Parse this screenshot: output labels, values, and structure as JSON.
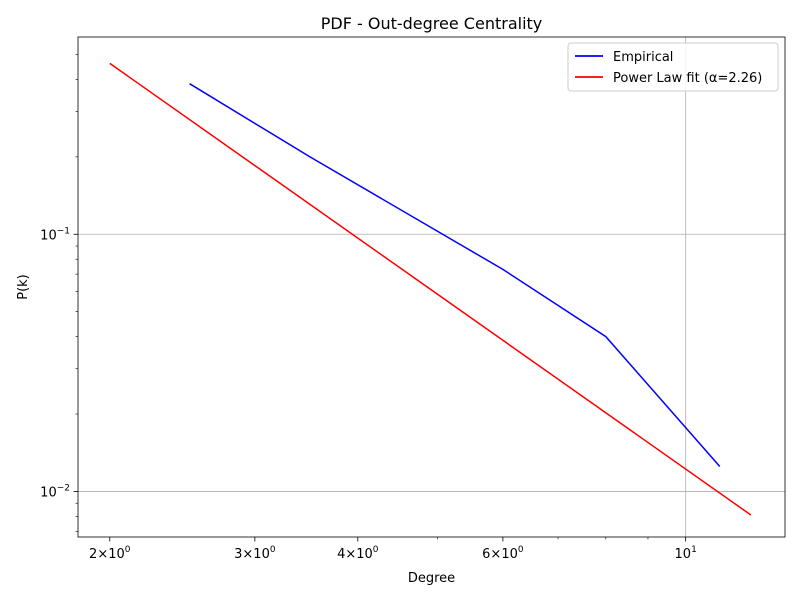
{
  "chart_data": {
    "type": "line",
    "title": "PDF - Out-degree Centrality",
    "xlabel": "Degree",
    "ylabel": "P(k)",
    "xscale": "log",
    "yscale": "log",
    "xlim": [
      1.83,
      13.2
    ],
    "ylim": [
      0.00665,
      0.585
    ],
    "grid": "major",
    "legend_position": "top-right",
    "x_ticks": [
      {
        "value": 2,
        "base": "2",
        "exp": "0"
      },
      {
        "value": 3,
        "base": "3",
        "exp": "0"
      },
      {
        "value": 4,
        "base": "4",
        "exp": "0"
      },
      {
        "value": 6,
        "base": "6",
        "exp": "0"
      },
      {
        "value": 10,
        "base": "10",
        "exp": "1"
      }
    ],
    "y_ticks": [
      {
        "value": 0.01,
        "base": "10",
        "exp": "−2"
      },
      {
        "value": 0.1,
        "base": "10",
        "exp": "−1"
      }
    ],
    "series": [
      {
        "name": "Empirical",
        "color": "#0000ff",
        "x": [
          2.5,
          3.5,
          6.0,
          8.0,
          11.0
        ],
        "y": [
          0.385,
          0.2,
          0.073,
          0.04,
          0.0125
        ]
      },
      {
        "name": "Power Law fit (α=2.26)",
        "color": "#ff0000",
        "x": [
          2.0,
          12.0
        ],
        "y": [
          0.462,
          0.0081
        ]
      }
    ]
  }
}
